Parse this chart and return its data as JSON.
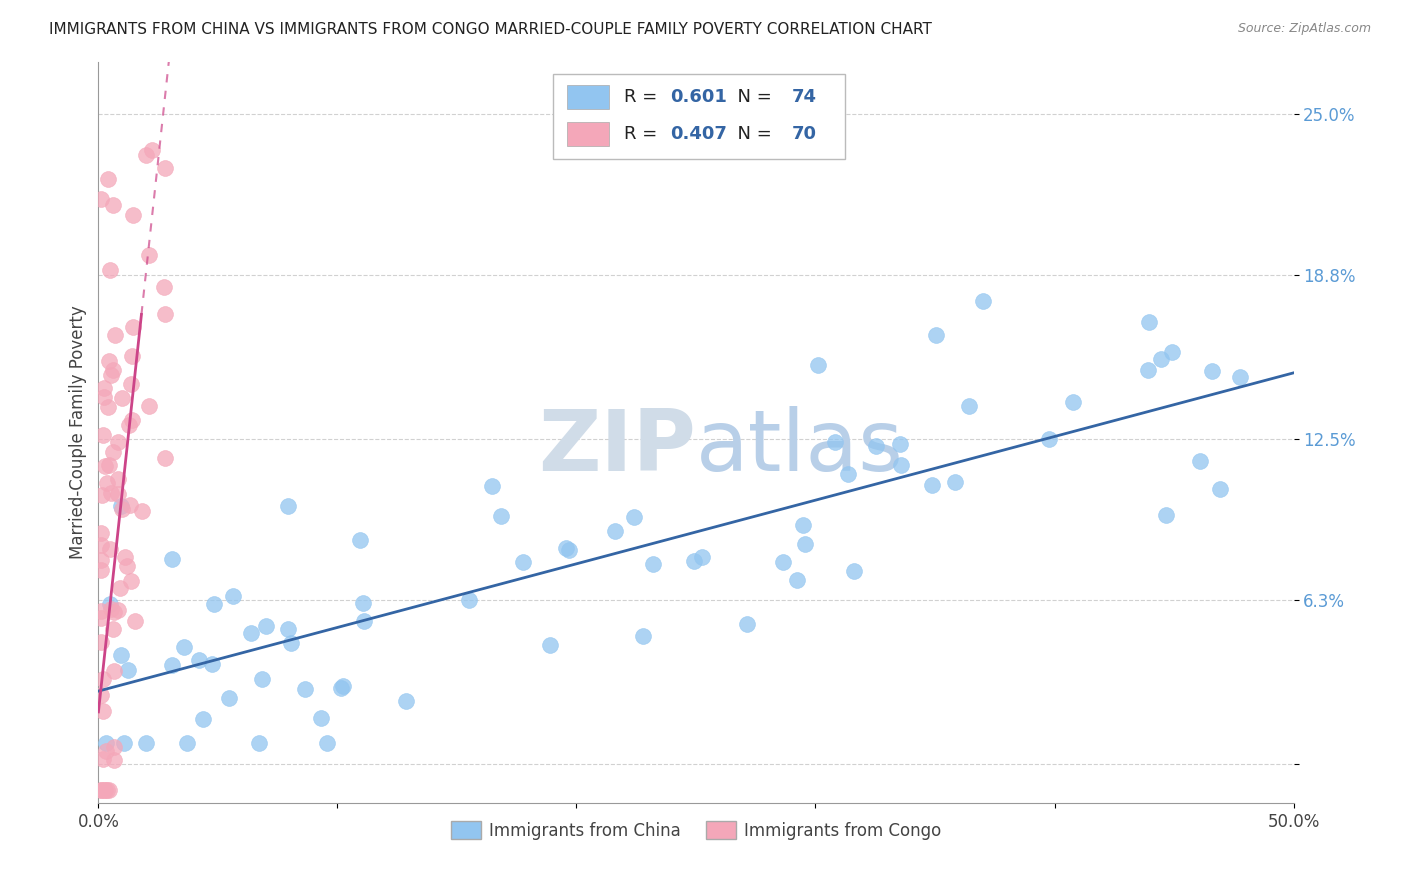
{
  "title": "IMMIGRANTS FROM CHINA VS IMMIGRANTS FROM CONGO MARRIED-COUPLE FAMILY POVERTY CORRELATION CHART",
  "source": "Source: ZipAtlas.com",
  "ylabel": "Married-Couple Family Poverty",
  "xlim": [
    0.0,
    0.5
  ],
  "ylim": [
    -0.015,
    0.27
  ],
  "china_R": 0.601,
  "china_N": 74,
  "congo_R": 0.407,
  "congo_N": 70,
  "china_color": "#92c5f0",
  "congo_color": "#f4a7b9",
  "china_line_color": "#3465a4",
  "congo_line_color": "#cc4488",
  "ytick_color": "#5b9bd5",
  "grid_color": "#cccccc",
  "watermark_color": "#d0dce8",
  "china_seed": 42,
  "congo_seed": 99
}
